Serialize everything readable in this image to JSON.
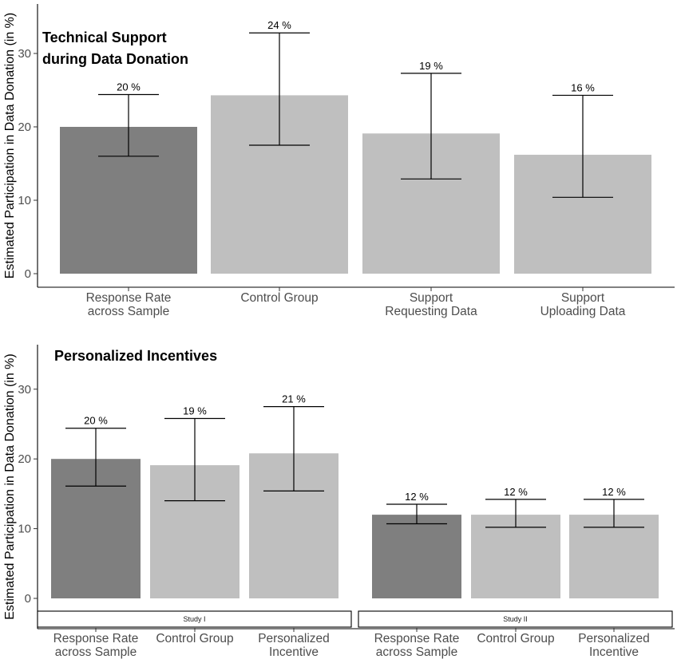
{
  "chart_data": [
    {
      "type": "bar",
      "title": [
        "Technical Support",
        "during Data Donation"
      ],
      "xlabel": "",
      "ylabel": "Estimated Participation in Data Donation (in %)",
      "ylim": [
        0,
        35
      ],
      "yticks": [
        0,
        10,
        20,
        30
      ],
      "categories": [
        [
          "Response Rate",
          "across Sample"
        ],
        [
          "Control Group"
        ],
        [
          "Support",
          "Requesting Data"
        ],
        [
          "Support",
          "Uploading Data"
        ]
      ],
      "values": [
        20,
        24.3,
        19.1,
        16.2
      ],
      "error_low": [
        16,
        17.5,
        12.9,
        10.4
      ],
      "error_high": [
        24.4,
        32.8,
        27.3,
        24.3
      ],
      "data_labels": [
        "20 %",
        "24 %",
        "19 %",
        "16 %"
      ],
      "bar_colors": [
        "#7f7f7f",
        "#bfbfbf",
        "#bfbfbf",
        "#bfbfbf"
      ],
      "grid": false,
      "legend": "none"
    },
    {
      "type": "bar",
      "title": [
        "Personalized Incentives"
      ],
      "xlabel": "",
      "ylabel": "Estimated Participation in Data Donation (in %)",
      "ylim": [
        0,
        35
      ],
      "yticks": [
        0,
        10,
        20,
        30
      ],
      "facets": [
        {
          "strip": "Study I",
          "categories": [
            [
              "Response Rate",
              "across Sample"
            ],
            [
              "Control Group"
            ],
            [
              "Personalized",
              "Incentive"
            ]
          ],
          "values": [
            20,
            19.1,
            20.8
          ],
          "error_low": [
            16.1,
            14,
            15.4
          ],
          "error_high": [
            24.4,
            25.8,
            27.5
          ],
          "data_labels": [
            "20 %",
            "19 %",
            "21 %"
          ],
          "bar_colors": [
            "#7f7f7f",
            "#bfbfbf",
            "#bfbfbf"
          ]
        },
        {
          "strip": "Study II",
          "categories": [
            [
              "Response Rate",
              "across Sample"
            ],
            [
              "Control Group"
            ],
            [
              "Personalized",
              "Incentive"
            ]
          ],
          "values": [
            12,
            12,
            12
          ],
          "error_low": [
            10.7,
            10.2,
            10.2
          ],
          "error_high": [
            13.5,
            14.2,
            14.2
          ],
          "data_labels": [
            "12 %",
            "12 %",
            "12 %"
          ],
          "bar_colors": [
            "#7f7f7f",
            "#bfbfbf",
            "#bfbfbf"
          ]
        }
      ],
      "grid": false,
      "legend": "none"
    }
  ]
}
